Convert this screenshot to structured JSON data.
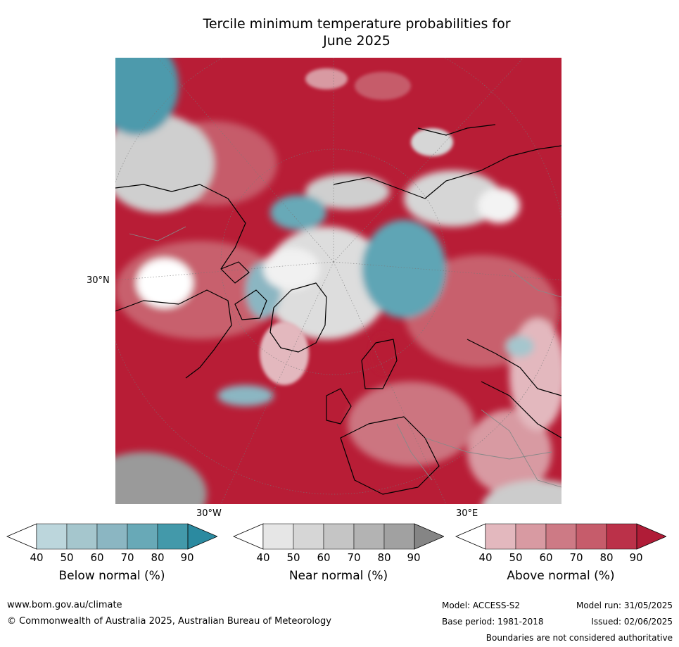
{
  "title_line1": "Tercile minimum temperature probabilities for",
  "title_line2": "June 2025",
  "map_labels": {
    "lat_30n": "30°N",
    "lon_30w": "30°W",
    "lon_30e": "30°E"
  },
  "colorbars": [
    {
      "label": "Below normal (%)",
      "ticks": [
        "40",
        "50",
        "60",
        "70",
        "80",
        "90"
      ],
      "colors": [
        "#ffffff",
        "#bcd6dc",
        "#a5c6cd",
        "#8bb6c2",
        "#68a9b7",
        "#4399aa",
        "#2b8aa0"
      ]
    },
    {
      "label": "Near normal (%)",
      "ticks": [
        "40",
        "50",
        "60",
        "70",
        "80",
        "90"
      ],
      "colors": [
        "#ffffff",
        "#e6e6e6",
        "#d6d6d6",
        "#c5c5c5",
        "#b3b3b3",
        "#a1a1a1",
        "#858585"
      ]
    },
    {
      "label": "Above normal (%)",
      "ticks": [
        "40",
        "50",
        "60",
        "70",
        "80",
        "90"
      ],
      "colors": [
        "#ffffff",
        "#e3b8be",
        "#d89aa2",
        "#cd7a85",
        "#c65c6b",
        "#bb3149",
        "#b01c37"
      ]
    }
  ],
  "footer": {
    "website": "www.bom.gov.au/climate",
    "copyright": "© Commonwealth of Australia 2025, Australian Bureau of Meteorology",
    "model": "Model: ACCESS-S2",
    "model_run": "Model run: 31/05/2025",
    "base_period": "Base period: 1981-2018",
    "issued": "Issued: 02/06/2025",
    "disclaimer": "Boundaries are not considered authoritative"
  }
}
